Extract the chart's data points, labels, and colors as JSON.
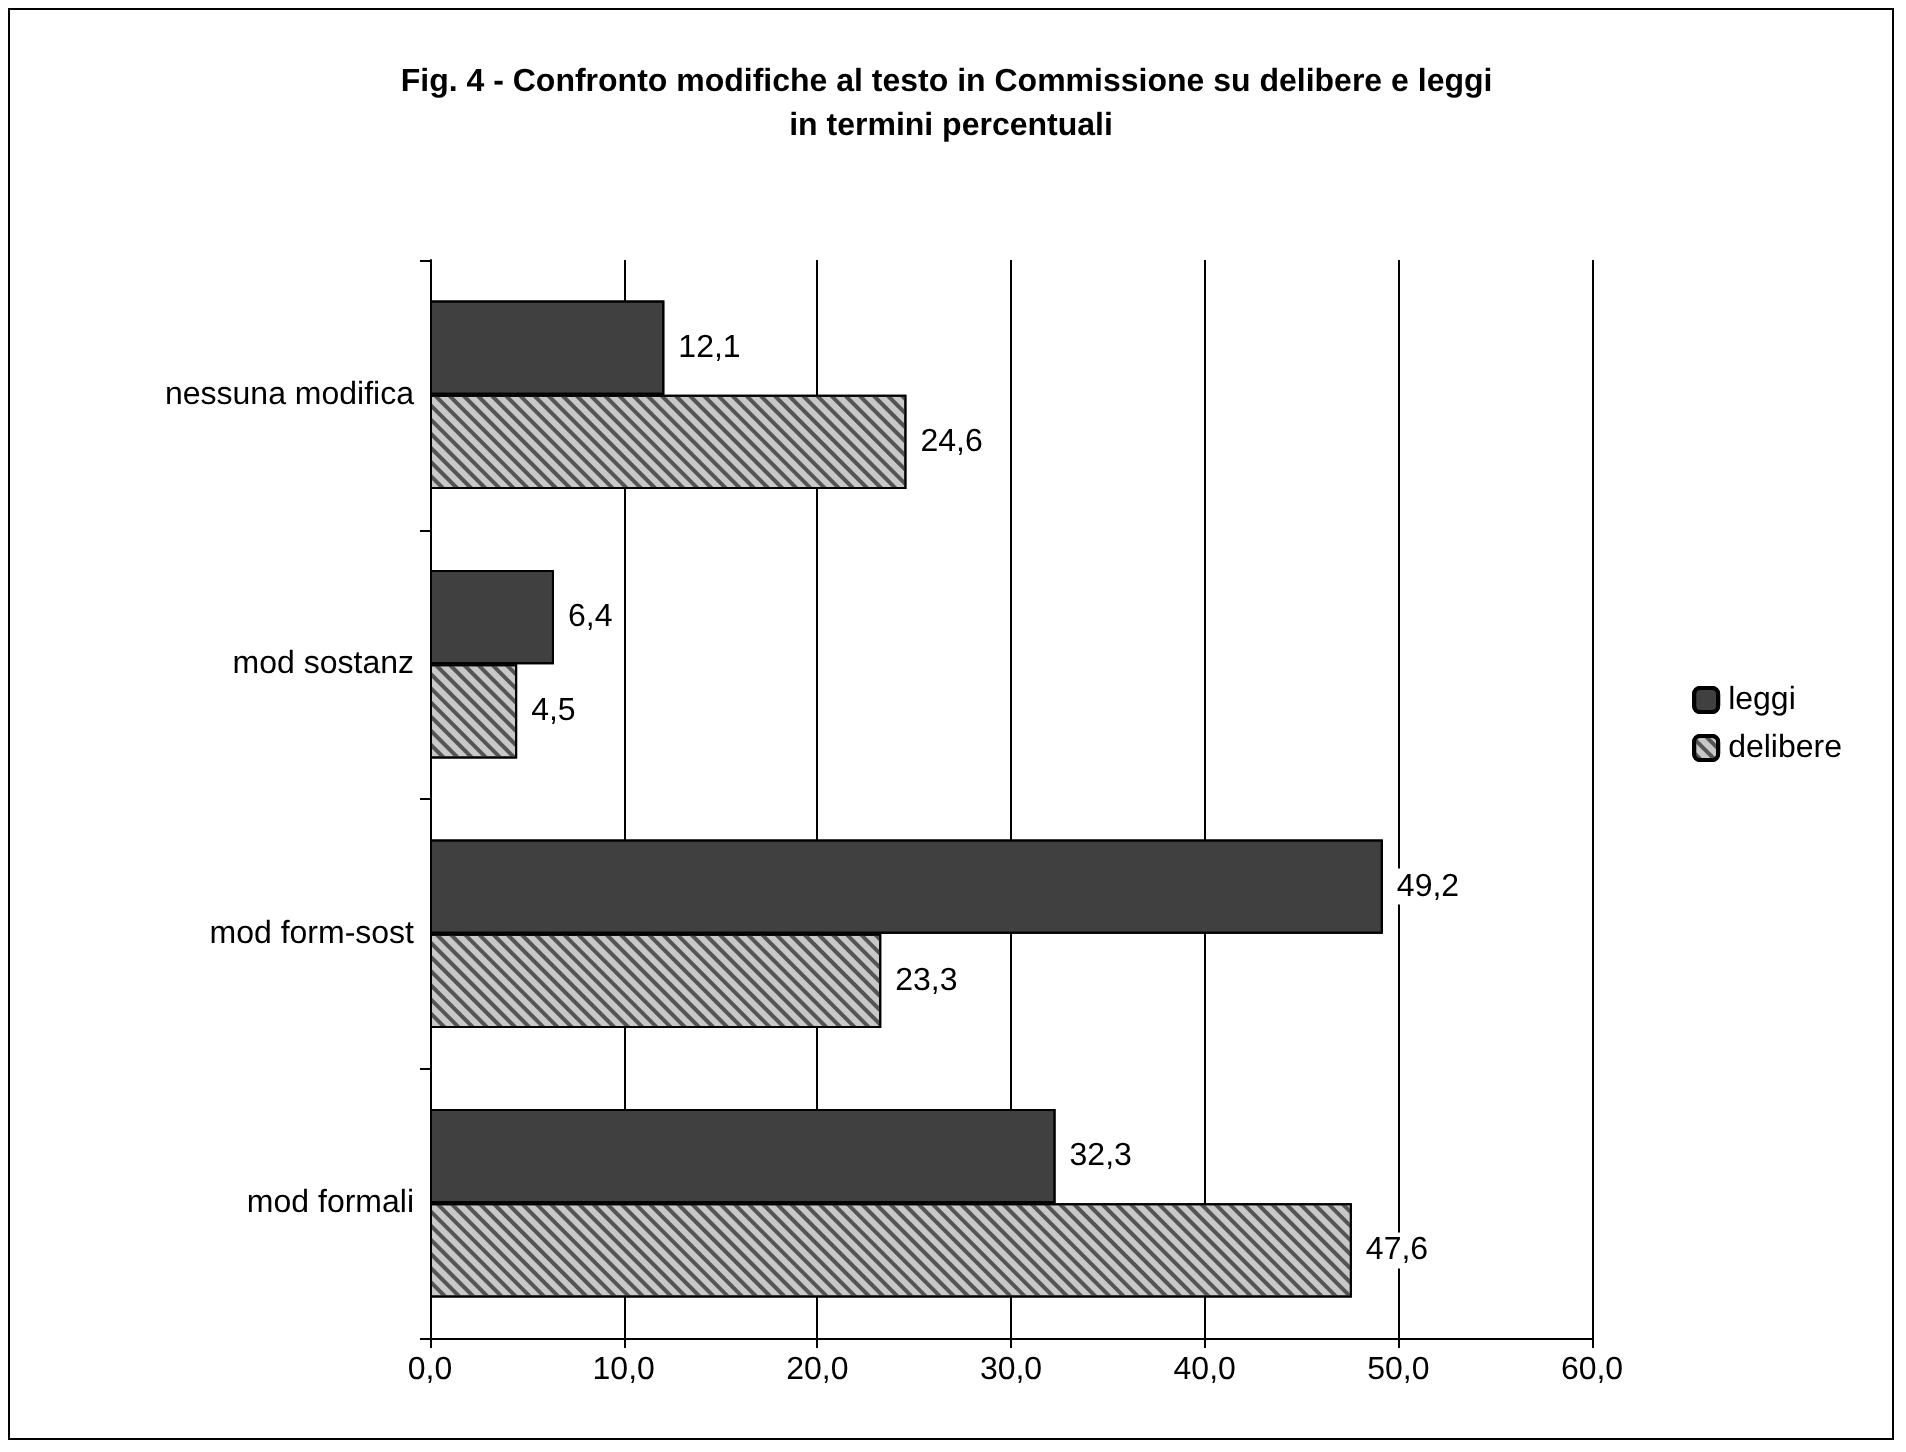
{
  "chart_data": {
    "type": "bar",
    "orientation": "horizontal",
    "title": "Fig. 4 - Confronto modifiche al testo in Commissione su delibere e leggi in termini percentuali",
    "categories": [
      "nessuna modifica",
      "mod sostanz",
      "mod form-sost",
      "mod formali"
    ],
    "series": [
      {
        "name": "leggi",
        "color": "#404040",
        "values": [
          12.1,
          6.4,
          49.2,
          32.3
        ],
        "value_labels": [
          "12,1",
          "6,4",
          "49,2",
          "32,3"
        ]
      },
      {
        "name": "delibere",
        "color": "#c8c8c8",
        "values": [
          24.6,
          4.5,
          23.3,
          47.6
        ],
        "value_labels": [
          "24,6",
          "4,5",
          "23,3",
          "47,6"
        ]
      }
    ],
    "xlim": [
      0,
      60
    ],
    "xticks": [
      {
        "value": 0,
        "label": "0,0"
      },
      {
        "value": 10,
        "label": "10,0"
      },
      {
        "value": 20,
        "label": "20,0"
      },
      {
        "value": 30,
        "label": "30,0"
      },
      {
        "value": 40,
        "label": "40,0"
      },
      {
        "value": 50,
        "label": "50,0"
      },
      {
        "value": 60,
        "label": "60,0"
      }
    ],
    "grid": "x",
    "legend": "right"
  }
}
